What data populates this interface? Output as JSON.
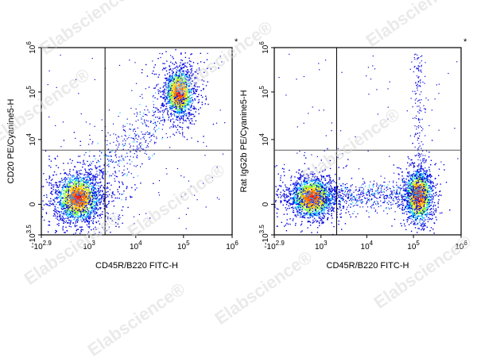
{
  "watermark_text": "Elabscience®",
  "colors": {
    "low": "#0000dd",
    "mid": "#00c8ff",
    "high": "#ffd200",
    "peak": "#ff1a00",
    "frame": "#000000",
    "gate": "#5a5a5a"
  },
  "chart_data": [
    {
      "type": "scatter",
      "subtype": "flow-cytometry-density",
      "xlabel": "CD45R/B220 FITC-H",
      "ylabel": "CD20 PE/Cyanine5-H",
      "x_scale": "biexponential",
      "y_scale": "biexponential",
      "xlim": [
        -794,
        1000000
      ],
      "ylim": [
        -3162,
        1000000
      ],
      "x_ticks": [
        {
          "value": -794,
          "base": "-10",
          "exp": "2.9"
        },
        {
          "value": 1000,
          "base": "10",
          "exp": "3"
        },
        {
          "value": 10000,
          "base": "10",
          "exp": "4"
        },
        {
          "value": 100000,
          "base": "10",
          "exp": "5"
        },
        {
          "value": 1000000,
          "base": "10",
          "exp": "6"
        }
      ],
      "y_ticks": [
        {
          "value": -3162,
          "base": "-10",
          "exp": "3.5"
        },
        {
          "value": 0,
          "base": "0",
          "exp": ""
        },
        {
          "value": 10000,
          "base": "10",
          "exp": "4"
        },
        {
          "value": 100000,
          "base": "10",
          "exp": "5"
        },
        {
          "value": 1000000,
          "base": "10",
          "exp": "6"
        }
      ],
      "gate": {
        "x": 2200,
        "y": 2200
      },
      "marker": "*",
      "populations": [
        {
          "name": "B220-negative, CD20-negative",
          "x_center": 480,
          "y_center": 300,
          "density": "high"
        },
        {
          "name": "B220-positive, CD20-positive",
          "x_center": 80000,
          "y_center": 70000,
          "density": "high"
        }
      ]
    },
    {
      "type": "scatter",
      "subtype": "flow-cytometry-density",
      "xlabel": "CD45R/B220 FITC-H",
      "ylabel": "Rat IgG2b PE/Cyanine5-H",
      "x_scale": "biexponential",
      "y_scale": "biexponential",
      "xlim": [
        -794,
        1000000
      ],
      "ylim": [
        -3162,
        1000000
      ],
      "x_ticks": [
        {
          "value": -794,
          "base": "-10",
          "exp": "2.9"
        },
        {
          "value": 1000,
          "base": "10",
          "exp": "3"
        },
        {
          "value": 10000,
          "base": "10",
          "exp": "4"
        },
        {
          "value": 100000,
          "base": "10",
          "exp": "5"
        },
        {
          "value": 1000000,
          "base": "10",
          "exp": "6"
        }
      ],
      "y_ticks": [
        {
          "value": -3162,
          "base": "-10",
          "exp": "3.5"
        },
        {
          "value": 0,
          "base": "0",
          "exp": ""
        },
        {
          "value": 10000,
          "base": "10",
          "exp": "4"
        },
        {
          "value": 100000,
          "base": "10",
          "exp": "5"
        },
        {
          "value": 1000000,
          "base": "10",
          "exp": "6"
        }
      ],
      "gate": {
        "x": 2200,
        "y": 2200
      },
      "marker": "*",
      "populations": [
        {
          "name": "B220-negative, isotype-negative",
          "x_center": 480,
          "y_center": 250,
          "density": "high"
        },
        {
          "name": "B220-positive, isotype-negative",
          "x_center": 60000,
          "y_center": 250,
          "density": "high"
        }
      ]
    }
  ]
}
